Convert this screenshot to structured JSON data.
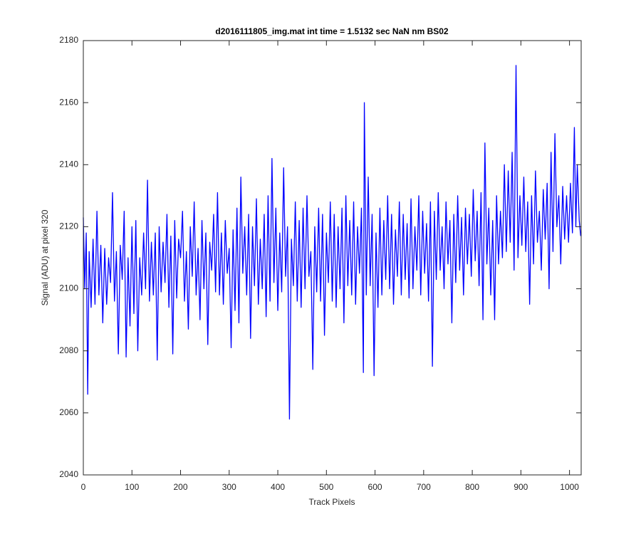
{
  "chart_data": {
    "type": "line",
    "title": "d2016111805_img.mat int time = 1.5132 sec  NaN nm BS02",
    "xlabel": "Track Pixels",
    "ylabel": "Signal (ADU) at pixel 320",
    "color": "#0000ff",
    "xlim": [
      0,
      1024
    ],
    "ylim": [
      2040,
      2180
    ],
    "xticks": [
      0,
      100,
      200,
      300,
      400,
      500,
      600,
      700,
      800,
      900,
      1000
    ],
    "yticks": [
      2040,
      2060,
      2080,
      2100,
      2120,
      2140,
      2160,
      2180
    ],
    "grid": false,
    "x": [
      0,
      3,
      6,
      9,
      12,
      16,
      20,
      24,
      28,
      32,
      36,
      40,
      44,
      48,
      52,
      56,
      60,
      64,
      68,
      72,
      76,
      80,
      84,
      88,
      92,
      96,
      100,
      104,
      108,
      112,
      116,
      120,
      124,
      128,
      132,
      136,
      140,
      144,
      148,
      152,
      156,
      160,
      164,
      168,
      172,
      176,
      180,
      184,
      188,
      192,
      196,
      200,
      204,
      208,
      212,
      216,
      220,
      224,
      228,
      232,
      236,
      240,
      244,
      248,
      252,
      256,
      260,
      264,
      268,
      272,
      276,
      280,
      284,
      288,
      292,
      296,
      300,
      304,
      308,
      312,
      316,
      320,
      324,
      328,
      332,
      336,
      340,
      344,
      348,
      352,
      356,
      360,
      364,
      368,
      372,
      376,
      380,
      384,
      388,
      392,
      396,
      400,
      404,
      408,
      412,
      416,
      420,
      424,
      428,
      432,
      436,
      440,
      444,
      448,
      452,
      456,
      460,
      464,
      468,
      472,
      476,
      480,
      484,
      488,
      492,
      496,
      500,
      504,
      508,
      512,
      516,
      520,
      524,
      528,
      532,
      536,
      540,
      544,
      548,
      552,
      556,
      560,
      564,
      568,
      572,
      576,
      578,
      582,
      586,
      590,
      594,
      598,
      602,
      606,
      610,
      614,
      618,
      622,
      626,
      630,
      634,
      638,
      642,
      646,
      650,
      654,
      658,
      662,
      666,
      670,
      674,
      678,
      682,
      686,
      690,
      694,
      698,
      702,
      706,
      710,
      714,
      718,
      722,
      726,
      730,
      734,
      738,
      742,
      746,
      750,
      754,
      758,
      762,
      766,
      770,
      774,
      778,
      782,
      786,
      790,
      794,
      798,
      802,
      806,
      810,
      814,
      818,
      822,
      826,
      830,
      834,
      838,
      842,
      846,
      850,
      854,
      858,
      862,
      866,
      870,
      874,
      878,
      882,
      886,
      890,
      894,
      898,
      902,
      906,
      910,
      914,
      918,
      922,
      926,
      930,
      934,
      938,
      942,
      946,
      950,
      954,
      958,
      962,
      966,
      970,
      974,
      978,
      982,
      986,
      990,
      994,
      998,
      1002,
      1006,
      1010,
      1013,
      1016,
      1020,
      1023
    ],
    "values": [
      2123,
      2100,
      2118,
      2066,
      2112,
      2094,
      2116,
      2095,
      2125,
      2098,
      2114,
      2089,
      2113,
      2095,
      2110,
      2102,
      2131,
      2096,
      2112,
      2079,
      2114,
      2103,
      2125,
      2078,
      2110,
      2088,
      2120,
      2092,
      2122,
      2080,
      2110,
      2098,
      2118,
      2100,
      2135,
      2096,
      2115,
      2098,
      2118,
      2077,
      2120,
      2099,
      2115,
      2102,
      2124,
      2094,
      2117,
      2079,
      2122,
      2097,
      2116,
      2110,
      2125,
      2096,
      2112,
      2087,
      2120,
      2104,
      2128,
      2098,
      2113,
      2090,
      2122,
      2100,
      2118,
      2082,
      2115,
      2106,
      2124,
      2099,
      2131,
      2098,
      2118,
      2095,
      2122,
      2105,
      2113,
      2081,
      2119,
      2093,
      2126,
      2089,
      2136,
      2105,
      2120,
      2098,
      2124,
      2084,
      2120,
      2101,
      2129,
      2095,
      2116,
      2100,
      2124,
      2091,
      2130,
      2096,
      2142,
      2102,
      2126,
      2093,
      2118,
      2099,
      2139,
      2104,
      2120,
      2058,
      2116,
      2101,
      2128,
      2096,
      2122,
      2094,
      2126,
      2100,
      2130,
      2104,
      2112,
      2074,
      2120,
      2099,
      2126,
      2096,
      2124,
      2085,
      2118,
      2102,
      2128,
      2096,
      2124,
      2094,
      2120,
      2100,
      2126,
      2089,
      2130,
      2101,
      2122,
      2098,
      2128,
      2095,
      2120,
      2105,
      2126,
      2073,
      2160,
      2098,
      2136,
      2101,
      2124,
      2072,
      2118,
      2094,
      2126,
      2098,
      2122,
      2103,
      2130,
      2100,
      2124,
      2095,
      2119,
      2104,
      2128,
      2098,
      2124,
      2103,
      2121,
      2097,
      2129,
      2100,
      2120,
      2106,
      2130,
      2098,
      2125,
      2105,
      2121,
      2096,
      2128,
      2075,
      2125,
      2103,
      2131,
      2106,
      2120,
      2100,
      2128,
      2108,
      2122,
      2089,
      2124,
      2102,
      2130,
      2106,
      2123,
      2098,
      2126,
      2108,
      2124,
      2104,
      2132,
      2109,
      2125,
      2101,
      2131,
      2090,
      2147,
      2108,
      2126,
      2098,
      2122,
      2090,
      2130,
      2108,
      2125,
      2110,
      2140,
      2112,
      2138,
      2115,
      2144,
      2106,
      2172,
      2110,
      2130,
      2114,
      2136,
      2112,
      2128,
      2095,
      2130,
      2108,
      2138,
      2115,
      2125,
      2106,
      2132,
      2116,
      2134,
      2100,
      2144,
      2112,
      2150,
      2120,
      2130,
      2108,
      2133,
      2116,
      2130,
      2115,
      2134,
      2118,
      2152,
      2120,
      2140,
      2122,
      2117
    ]
  }
}
